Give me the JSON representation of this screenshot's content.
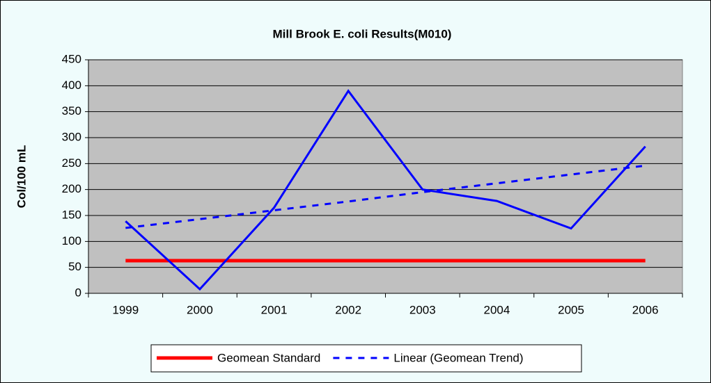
{
  "chart_data": {
    "type": "line",
    "title": "Mill Brook E. coli Results(M010)",
    "y_label": "Col/100 mL",
    "categories": [
      "1999",
      "2000",
      "2001",
      "2002",
      "2003",
      "2004",
      "2005",
      "2006"
    ],
    "series": [
      {
        "name": "Geomean Standard",
        "color": "#ff0000",
        "dash": false,
        "width": 5,
        "values": [
          63,
          63,
          63,
          63,
          63,
          63,
          63,
          63
        ]
      },
      {
        "name": "Linear (Geomean Trend)",
        "color": "#0000ff",
        "dash": true,
        "width": 3,
        "values": [
          126,
          143,
          160,
          177,
          195,
          212,
          229,
          246
        ]
      },
      {
        "color": "#0000ff",
        "dash": false,
        "width": 3,
        "values": [
          139,
          8,
          165,
          390,
          200,
          178,
          125,
          283
        ]
      }
    ],
    "ylim": [
      0,
      450
    ],
    "yticks": [
      0,
      50,
      100,
      150,
      200,
      250,
      300,
      350,
      400,
      450
    ],
    "grid": true,
    "plot_color": "#c0c0c0",
    "legend": "bottom"
  }
}
